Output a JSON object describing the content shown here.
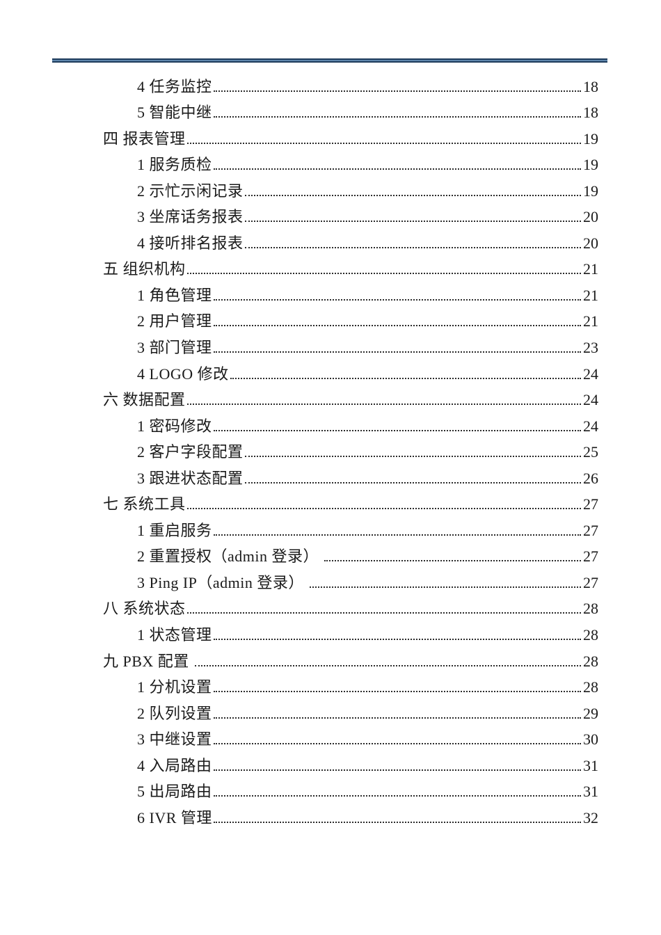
{
  "page": {
    "background": "#ffffff",
    "rule_navy": "#1f3c5c",
    "rule_steel": "#5f86ad"
  },
  "toc": {
    "entries": [
      {
        "label": "4 任务监控",
        "page": "18",
        "level": 2
      },
      {
        "label": "5 智能中继",
        "page": "18",
        "level": 2
      },
      {
        "label": "四 报表管理",
        "page": "19",
        "level": 1
      },
      {
        "label": "1 服务质检",
        "page": "19",
        "level": 2
      },
      {
        "label": "2 示忙示闲记录",
        "page": "19",
        "level": 2
      },
      {
        "label": "3 坐席话务报表",
        "page": "20",
        "level": 2
      },
      {
        "label": "4 接听排名报表",
        "page": "20",
        "level": 2
      },
      {
        "label": "五 组织机构",
        "page": "21",
        "level": 1
      },
      {
        "label": "1 角色管理",
        "page": "21",
        "level": 2
      },
      {
        "label": "2 用户管理",
        "page": "21",
        "level": 2
      },
      {
        "label": "3 部门管理",
        "page": "23",
        "level": 2
      },
      {
        "label": "4 LOGO 修改",
        "page": "24",
        "level": 2
      },
      {
        "label": "六 数据配置",
        "page": "24",
        "level": 1
      },
      {
        "label": "1 密码修改",
        "page": "24",
        "level": 2
      },
      {
        "label": "2 客户字段配置",
        "page": "25",
        "level": 2
      },
      {
        "label": "3 跟进状态配置",
        "page": "26",
        "level": 2
      },
      {
        "label": "七 系统工具",
        "page": "27",
        "level": 1
      },
      {
        "label": "1 重启服务",
        "page": "27",
        "level": 2
      },
      {
        "label": "2 重置授权（admin 登录） ",
        "page": "27",
        "level": 2
      },
      {
        "label": "3 Ping IP（admin 登录） ",
        "page": "27",
        "level": 2
      },
      {
        "label": "八 系统状态",
        "page": "28",
        "level": 1
      },
      {
        "label": "1 状态管理",
        "page": "28",
        "level": 2
      },
      {
        "label": "九 PBX 配置 ",
        "page": "28",
        "level": 1
      },
      {
        "label": "1 分机设置",
        "page": "28",
        "level": 2
      },
      {
        "label": "2 队列设置",
        "page": "29",
        "level": 2
      },
      {
        "label": "3 中继设置",
        "page": "30",
        "level": 2
      },
      {
        "label": "4 入局路由",
        "page": "31",
        "level": 2
      },
      {
        "label": "5 出局路由",
        "page": "31",
        "level": 2
      },
      {
        "label": "6 IVR 管理",
        "page": "32",
        "level": 2
      }
    ]
  }
}
